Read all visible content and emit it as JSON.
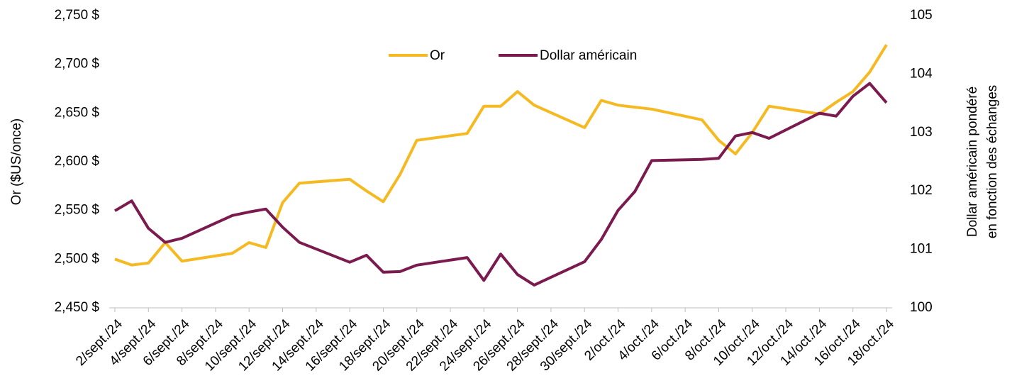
{
  "chart_data": {
    "type": "line",
    "ylabel": "Or ($US/once)",
    "y2label": [
      "Dollar américain pondéré",
      "en fonction des échanges"
    ],
    "x": [
      "2/sept./24",
      "3/sept./24",
      "4/sept./24",
      "5/sept./24",
      "6/sept./24",
      "9/sept./24",
      "10/sept./24",
      "11/sept./24",
      "12/sept./24",
      "13/sept./24",
      "16/sept./24",
      "17/sept./24",
      "18/sept./24",
      "19/sept./24",
      "20/sept./24",
      "23/sept./24",
      "24/sept./24",
      "25/sept./24",
      "26/sept./24",
      "27/sept./24",
      "30/sept./24",
      "1/oct./24",
      "2/oct./24",
      "3/oct./24",
      "4/oct./24",
      "7/oct./24",
      "8/oct./24",
      "9/oct./24",
      "10/oct./24",
      "11/oct./24",
      "14/oct./24",
      "15/oct./24",
      "16/oct./24",
      "17/oct./24",
      "18/oct./24"
    ],
    "xticks": [
      "2/sept./24",
      "4/sept./24",
      "6/sept./24",
      "8/sept./24",
      "10/sept./24",
      "12/sept./24",
      "14/sept./24",
      "16/sept./24",
      "18/sept./24",
      "20/sept./24",
      "22/sept./24",
      "24/sept./24",
      "26/sept./24",
      "28/sept./24",
      "30/sept./24",
      "2/oct./24",
      "4/oct./24",
      "6/oct./24",
      "8/oct./24",
      "10/oct./24",
      "12/oct./24",
      "14/oct./24",
      "16/oct./24",
      "18/oct./24"
    ],
    "series": [
      {
        "name": "Or",
        "color": "#f5b921",
        "axis": "y",
        "values": [
          2500,
          2494,
          2496,
          2517,
          2498,
          2506,
          2517,
          2512,
          2558,
          2578,
          2582,
          2570,
          2559,
          2587,
          2622,
          2629,
          2657,
          2657,
          2672,
          2658,
          2635,
          2663,
          2658,
          2656,
          2654,
          2643,
          2622,
          2608,
          2630,
          2657,
          2649,
          2661,
          2672,
          2692,
          2720
        ]
      },
      {
        "name": "Dollar américain",
        "color": "#7b1a4e",
        "axis": "y2",
        "values": [
          101.66,
          101.83,
          101.36,
          101.12,
          101.19,
          101.58,
          101.64,
          101.69,
          101.38,
          101.12,
          100.78,
          100.9,
          100.61,
          100.62,
          100.73,
          100.86,
          100.47,
          100.92,
          100.57,
          100.39,
          100.79,
          101.17,
          101.67,
          101.99,
          102.52,
          102.54,
          102.56,
          102.94,
          103.0,
          102.9,
          103.33,
          103.28,
          103.62,
          103.84,
          103.51
        ]
      }
    ],
    "ylim": [
      2450,
      2750
    ],
    "yticks": [
      {
        "value": 2450,
        "label": "2,450 $"
      },
      {
        "value": 2500,
        "label": "2,500 $"
      },
      {
        "value": 2550,
        "label": "2,550 $"
      },
      {
        "value": 2600,
        "label": "2,600 $"
      },
      {
        "value": 2650,
        "label": "2,650 $"
      },
      {
        "value": 2700,
        "label": "2,700 $"
      },
      {
        "value": 2750,
        "label": "2,750 $"
      }
    ],
    "y2lim": [
      100,
      105
    ],
    "y2ticks": [
      100,
      101,
      102,
      103,
      104,
      105
    ],
    "legend": "top"
  }
}
